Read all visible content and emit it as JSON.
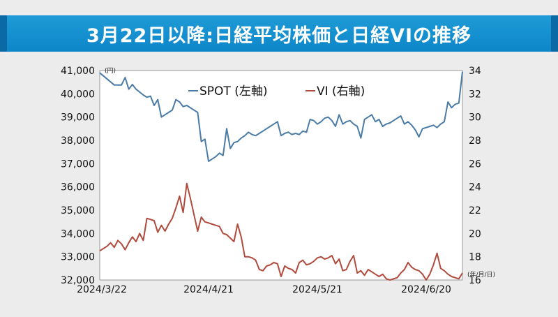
{
  "header": {
    "title": "3月22日以降:日経平均株価と日経VIの推移"
  },
  "chart_data": {
    "type": "line",
    "left_unit_label": "(円)",
    "bottom_right_label": "(年/月/日)",
    "left_axis": {
      "ylim": [
        32000,
        41000
      ],
      "ticks": [
        32000,
        33000,
        34000,
        35000,
        36000,
        37000,
        38000,
        39000,
        40000,
        41000
      ],
      "tick_labels": [
        "32,000",
        "33,000",
        "34,000",
        "35,000",
        "36,000",
        "37,000",
        "38,000",
        "39,000",
        "40,000",
        "41,000"
      ]
    },
    "right_axis": {
      "ylim": [
        16,
        34
      ],
      "ticks": [
        16,
        18,
        20,
        22,
        24,
        26,
        28,
        30,
        32,
        34
      ],
      "tick_labels": [
        "16",
        "18",
        "20",
        "22",
        "24",
        "26",
        "28",
        "30",
        "32",
        "34"
      ]
    },
    "x_axis": {
      "xlim": [
        0,
        100
      ],
      "ticks": [
        0,
        30,
        60,
        90
      ],
      "tick_labels": [
        "2024/3/22",
        "2024/4/21",
        "2024/5/21",
        "2024/6/20"
      ]
    },
    "legend": [
      "SPOT (左軸)",
      "VI (右軸)"
    ],
    "series": [
      {
        "name": "SPOT (左軸)",
        "axis": "left",
        "color": "#4a7ba6",
        "x": [
          0,
          4,
          6,
          7,
          8,
          9,
          10,
          12,
          13,
          14,
          15,
          16,
          17,
          18,
          19,
          20,
          21,
          22,
          23,
          24,
          26,
          27,
          28,
          29,
          30,
          31,
          32,
          33,
          34,
          35,
          36,
          37,
          38,
          39,
          40,
          41,
          42,
          43,
          44,
          45,
          46,
          47,
          48,
          49,
          50,
          51,
          52,
          53,
          54,
          55,
          56,
          57,
          58,
          59,
          60,
          61,
          62,
          63,
          64,
          65,
          66,
          67,
          68,
          69,
          70,
          71,
          72,
          73,
          74,
          75,
          76,
          77,
          78,
          79,
          80,
          81,
          82,
          83,
          84,
          85,
          86,
          87,
          88,
          89,
          90,
          91,
          92,
          93,
          94,
          95,
          96,
          97,
          98,
          99,
          100
        ],
        "values": [
          40900,
          40380,
          40380,
          40700,
          40200,
          40400,
          40200,
          39950,
          39850,
          39900,
          39500,
          39750,
          39000,
          39100,
          39200,
          39300,
          39750,
          39650,
          39450,
          39500,
          39300,
          39200,
          37950,
          38050,
          37100,
          37200,
          37300,
          37450,
          37350,
          38500,
          37650,
          37900,
          37950,
          38100,
          38200,
          38350,
          38250,
          38200,
          38300,
          38400,
          38500,
          38600,
          38700,
          38800,
          38200,
          38300,
          38350,
          38250,
          38300,
          38250,
          38400,
          38350,
          38900,
          38850,
          38700,
          38800,
          38950,
          39000,
          38850,
          38600,
          39100,
          38700,
          38800,
          38850,
          38700,
          38600,
          38100,
          38900,
          39000,
          39100,
          38800,
          38900,
          38600,
          38700,
          38750,
          38850,
          38950,
          39050,
          38700,
          38800,
          38650,
          38450,
          38150,
          38500,
          38550,
          38600,
          38650,
          38550,
          38700,
          38800,
          39650,
          39400,
          39550,
          39600,
          40950
        ]
      },
      {
        "name": "VI (右軸)",
        "axis": "right",
        "color": "#b04a3c",
        "x": [
          0,
          2,
          3,
          4,
          5,
          6,
          7,
          8,
          9,
          10,
          11,
          12,
          13,
          14,
          15,
          16,
          17,
          18,
          19,
          20,
          21,
          22,
          23,
          24,
          25,
          26,
          27,
          28,
          29,
          30,
          31,
          32,
          33,
          34,
          35,
          36,
          37,
          38,
          39,
          40,
          41,
          42,
          43,
          44,
          45,
          46,
          47,
          48,
          49,
          50,
          51,
          52,
          53,
          54,
          55,
          56,
          57,
          58,
          59,
          60,
          61,
          62,
          63,
          64,
          65,
          66,
          67,
          68,
          69,
          70,
          71,
          72,
          73,
          74,
          75,
          76,
          77,
          78,
          79,
          80,
          81,
          82,
          83,
          84,
          85,
          86,
          87,
          88,
          89,
          90,
          91,
          92,
          93,
          94,
          95,
          96,
          97,
          98,
          99,
          100
        ],
        "values": [
          18.5,
          18.9,
          19.2,
          18.8,
          19.4,
          19.1,
          18.6,
          19.2,
          19.7,
          19.3,
          20.0,
          19.4,
          21.3,
          21.2,
          21.1,
          20.1,
          20.7,
          20.2,
          20.8,
          21.3,
          22.2,
          23.2,
          21.8,
          24.3,
          23.0,
          21.6,
          20.2,
          21.4,
          21.0,
          20.9,
          20.8,
          20.7,
          20.6,
          20.0,
          19.9,
          19.6,
          19.3,
          20.8,
          19.7,
          18.0,
          18.0,
          17.9,
          17.7,
          16.9,
          16.8,
          17.2,
          17.3,
          17.5,
          17.4,
          16.3,
          17.2,
          17.0,
          16.9,
          16.6,
          17.5,
          17.7,
          17.3,
          17.4,
          17.6,
          17.9,
          18.0,
          17.8,
          17.9,
          18.1,
          17.4,
          17.8,
          16.8,
          16.9,
          17.6,
          18.1,
          16.6,
          16.8,
          16.4,
          16.9,
          16.7,
          16.5,
          16.3,
          16.5,
          16.1,
          16.0,
          16.1,
          16.2,
          16.6,
          16.9,
          17.5,
          17.1,
          16.9,
          16.8,
          16.5,
          16.0,
          16.5,
          17.3,
          18.3,
          17.0,
          16.8,
          16.5,
          16.3,
          16.2,
          16.1,
          16.6
        ]
      }
    ]
  }
}
